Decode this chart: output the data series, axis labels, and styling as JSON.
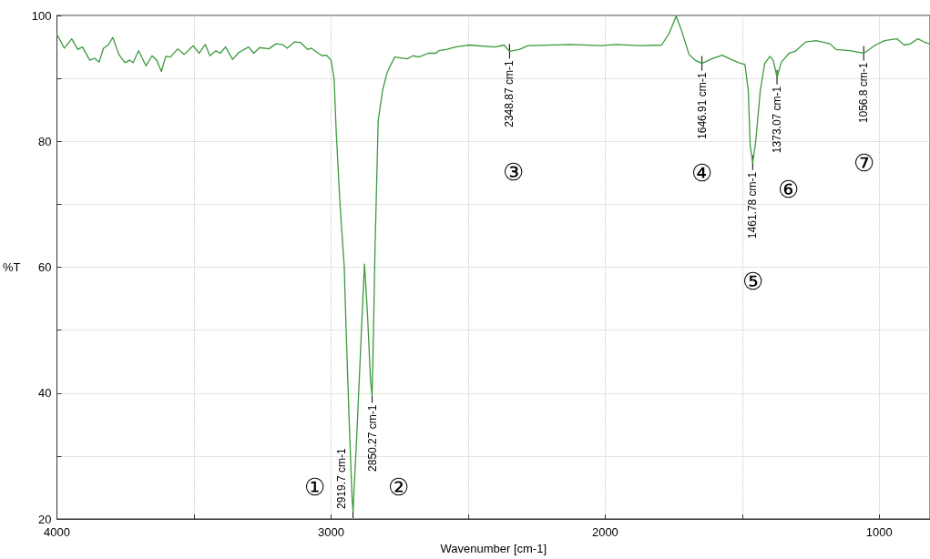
{
  "chart_data": {
    "type": "line",
    "xlabel": "Wavenumber [cm-1]",
    "ylabel": "%T",
    "xlim": [
      4000,
      815
    ],
    "xticks": [
      4000,
      {
        "value": 3500,
        "label": null
      },
      3000,
      {
        "value": 2500,
        "label": null
      },
      2000,
      {
        "value": 1500,
        "label": null
      },
      1000
    ],
    "ylim": [
      20,
      100
    ],
    "yticks": [
      20,
      {
        "value": 30,
        "label": null
      },
      40,
      {
        "value": 50,
        "label": null
      },
      60,
      {
        "value": 70,
        "label": null
      },
      80,
      {
        "value": 90,
        "label": null
      },
      100
    ],
    "grid": true,
    "marker": "none",
    "line_style": "solid",
    "series": [
      {
        "color": "#3c9a3c",
        "x": [
          4000,
          3973,
          3946,
          3924,
          3907,
          3880,
          3863,
          3846,
          3830,
          3813,
          3796,
          3774,
          3752,
          3735,
          3722,
          3702,
          3675,
          3653,
          3636,
          3619,
          3603,
          3586,
          3559,
          3536,
          3503,
          3481,
          3459,
          3442,
          3420,
          3404,
          3385,
          3359,
          3337,
          3301,
          3282,
          3260,
          3227,
          3201,
          3177,
          3160,
          3133,
          3111,
          3086,
          3072,
          3033,
          3017,
          3000,
          2989,
          2981,
          2967,
          2952,
          2945,
          2934,
          2923,
          2919.7,
          2906,
          2889,
          2878,
          2867,
          2856,
          2850.27,
          2845,
          2840,
          2828,
          2812,
          2795,
          2768,
          2723,
          2701,
          2679,
          2646,
          2618,
          2607,
          2580,
          2546,
          2497,
          2403,
          2369,
          2348.87,
          2314,
          2281,
          2126,
          2015,
          1960,
          1872,
          1794,
          1766,
          1741,
          1722,
          1694,
          1672,
          1646.91,
          1611,
          1573,
          1545,
          1512,
          1490,
          1478,
          1471,
          1461.78,
          1451,
          1434,
          1418,
          1399,
          1387,
          1373.07,
          1357,
          1329,
          1307,
          1268,
          1230,
          1180,
          1158,
          1108,
          1056.8,
          1014,
          981,
          936,
          909,
          887,
          859,
          837,
          817
        ],
        "values": [
          97.0,
          94.8,
          96.3,
          94.6,
          95.0,
          92.9,
          93.2,
          92.6,
          94.8,
          95.3,
          96.5,
          93.8,
          92.5,
          92.9,
          92.5,
          94.4,
          92.0,
          93.6,
          92.9,
          91.1,
          93.5,
          93.4,
          94.7,
          93.8,
          95.2,
          94.0,
          95.4,
          93.6,
          94.4,
          94.0,
          95.0,
          93.0,
          94.1,
          95.0,
          94.0,
          94.9,
          94.7,
          95.5,
          95.4,
          94.8,
          95.8,
          95.7,
          94.6,
          94.8,
          93.6,
          93.7,
          92.9,
          90.0,
          81.4,
          69.8,
          60.2,
          50.1,
          35.7,
          23.0,
          21.3,
          33.3,
          50.1,
          60.5,
          52.5,
          42.0,
          39.6,
          50.1,
          62.1,
          83.3,
          88.1,
          91.0,
          93.4,
          93.1,
          93.6,
          93.4,
          94.0,
          94.0,
          94.4,
          94.6,
          95.0,
          95.3,
          95.0,
          95.3,
          94.3,
          94.6,
          95.2,
          95.4,
          95.2,
          95.4,
          95.2,
          95.3,
          97.2,
          99.9,
          97.7,
          93.8,
          92.9,
          92.4,
          93.1,
          93.7,
          93.1,
          92.5,
          92.2,
          88.1,
          79.4,
          76.6,
          79.9,
          88.1,
          92.4,
          93.5,
          92.9,
          90.2,
          92.6,
          94.0,
          94.3,
          95.8,
          96.0,
          95.5,
          94.6,
          94.4,
          94.0,
          95.3,
          96.0,
          96.3,
          95.3,
          95.5,
          96.3,
          95.8,
          95.5
        ]
      }
    ],
    "annotations": [
      {
        "text": "2919.7 cm-1",
        "x": 2919.7,
        "y": 21.3
      },
      {
        "text": "2850.27 cm-1",
        "x": 2850.27,
        "y": 39.6
      },
      {
        "text": "2348.87 cm-1",
        "x": 2348.87,
        "y": 94.3
      },
      {
        "text": "1646.91 cm-1",
        "x": 1646.91,
        "y": 92.4
      },
      {
        "text": "1461.78 cm-1",
        "x": 1461.78,
        "y": 76.6
      },
      {
        "text": "1373.07 cm-1",
        "x": 1373.07,
        "y": 90.2
      },
      {
        "text": "1056.8 cm-1",
        "x": 1056.8,
        "y": 94.0
      },
      "①",
      "②",
      "③",
      "④",
      "⑤",
      "⑥",
      "⑦"
    ]
  }
}
